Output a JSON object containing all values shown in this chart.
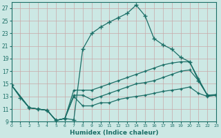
{
  "title": "",
  "xlabel": "Humidex (Indice chaleur)",
  "ylabel": "",
  "bg_color": "#cce8e4",
  "line_color": "#1a6e66",
  "grid_color": "#b8d8d4",
  "xmin": 0,
  "xmax": 23,
  "ymin": 9,
  "ymax": 28,
  "xticks": [
    0,
    1,
    2,
    3,
    4,
    5,
    6,
    7,
    8,
    9,
    10,
    11,
    12,
    13,
    14,
    15,
    16,
    17,
    18,
    19,
    20,
    21,
    22,
    23
  ],
  "yticks": [
    9,
    11,
    13,
    15,
    17,
    19,
    21,
    23,
    25,
    27
  ],
  "series": [
    {
      "x": [
        0,
        1,
        2,
        3,
        4,
        5,
        6,
        7,
        8,
        9,
        10,
        11,
        12,
        13,
        14,
        15,
        16,
        17,
        18,
        19,
        20,
        21,
        22,
        23
      ],
      "y": [
        14.8,
        12.8,
        11.2,
        11.0,
        10.8,
        9.2,
        9.5,
        9.3,
        20.5,
        23.0,
        24.0,
        24.8,
        25.5,
        26.2,
        27.5,
        25.8,
        22.2,
        21.2,
        20.5,
        19.2,
        18.5,
        15.5,
        13.2,
        13.2
      ]
    },
    {
      "x": [
        0,
        2,
        3,
        4,
        5,
        6,
        7,
        8,
        9,
        10,
        11,
        12,
        13,
        14,
        15,
        16,
        17,
        18,
        19,
        20,
        21,
        22,
        23
      ],
      "y": [
        14.8,
        11.2,
        11.0,
        10.8,
        9.2,
        9.5,
        14.0,
        14.0,
        14.0,
        14.5,
        15.0,
        15.5,
        16.0,
        16.5,
        17.0,
        17.5,
        18.0,
        18.3,
        18.5,
        18.5,
        15.8,
        13.2,
        13.3
      ]
    },
    {
      "x": [
        0,
        2,
        3,
        4,
        5,
        6,
        7,
        8,
        9,
        10,
        11,
        12,
        13,
        14,
        15,
        16,
        17,
        18,
        19,
        20,
        21,
        22,
        23
      ],
      "y": [
        14.8,
        11.2,
        11.0,
        10.8,
        9.2,
        9.5,
        13.2,
        13.2,
        12.5,
        13.0,
        13.5,
        14.0,
        14.5,
        15.0,
        15.2,
        15.5,
        16.0,
        16.5,
        17.0,
        17.2,
        15.5,
        13.2,
        13.2
      ]
    },
    {
      "x": [
        0,
        2,
        3,
        4,
        5,
        6,
        7,
        8,
        9,
        10,
        11,
        12,
        13,
        14,
        15,
        16,
        17,
        18,
        19,
        20,
        21,
        22,
        23
      ],
      "y": [
        14.8,
        11.2,
        11.0,
        10.8,
        9.2,
        9.5,
        13.0,
        11.5,
        11.5,
        12.0,
        12.0,
        12.5,
        12.8,
        13.0,
        13.2,
        13.5,
        13.8,
        14.0,
        14.2,
        14.5,
        13.5,
        13.0,
        13.2
      ]
    }
  ]
}
